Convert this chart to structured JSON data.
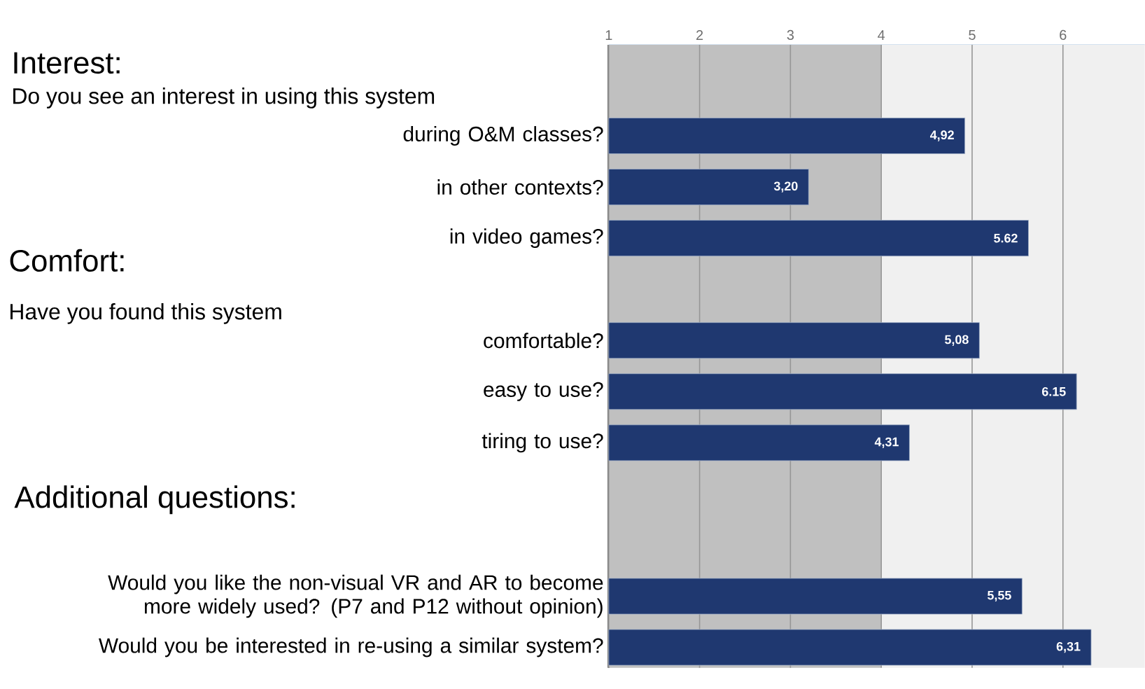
{
  "chart_data": {
    "type": "bar",
    "orientation": "horizontal",
    "categories": [
      "during O&M classes?",
      "in other contexts?",
      "in video games?",
      null,
      "comfortable?",
      "easy to use?",
      "tiring to use?",
      null,
      null,
      "Would you like the non-visual VR and AR to become more widely used? (P7 and P12 without opinion)",
      "Would you be interested in re-using a similar system?"
    ],
    "values": [
      4.92,
      3.2,
      5.62,
      null,
      5.08,
      6.15,
      4.31,
      null,
      null,
      5.55,
      6.31
    ],
    "value_labels": [
      "4,92",
      "3,20",
      "5.62",
      null,
      "5,08",
      "6.15",
      "4,31",
      null,
      null,
      "5,55",
      "6,31"
    ],
    "color": "#1f3870",
    "xlim": [
      1,
      6.9
    ],
    "xticks": [
      1,
      2,
      3,
      4,
      5,
      6
    ],
    "grid": "x",
    "bands": [
      {
        "axis": "x",
        "from": 1,
        "to": 4,
        "color": "#c0c0c0"
      },
      {
        "axis": "x",
        "from": 4,
        "to": 6.9,
        "color": "#f0f0f0"
      }
    ],
    "annotations": [
      "Interest:",
      "Do you see an interest in using this system",
      "Comfort:",
      "Have you found this system",
      "Additional questions:"
    ]
  }
}
